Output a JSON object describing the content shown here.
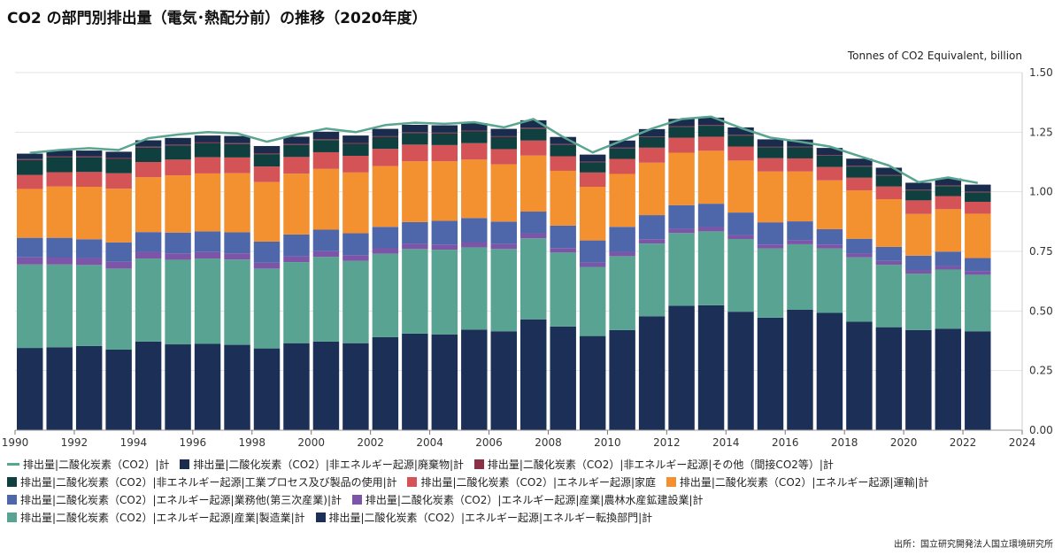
{
  "title": "CO2 の部門別排出量（電気･熱配分前）の推移（2020年度）",
  "unit_label": "Tonnes of CO2 Equivalent, billion",
  "source": "出所：国立研究開発法人国立環境研究所",
  "colors": {
    "total": "#5aa590",
    "energy_conversion": "#1c2f57",
    "manufacturing": "#58a392",
    "agri_construction": "#7d55a8",
    "commercial": "#4e67ab",
    "transport": "#f39030",
    "household": "#d45356",
    "industrial_process": "#0f3f3e",
    "other_indirect": "#8a3145",
    "waste": "#1a2c4e"
  },
  "legend": [
    {
      "key": "total",
      "label": "排出量|二酸化炭素（CO2）|計",
      "kind": "line"
    },
    {
      "key": "waste",
      "label": "排出量|二酸化炭素（CO2）|非エネルギー起源|廃棄物|計",
      "kind": "box"
    },
    {
      "key": "other_indirect",
      "label": "排出量|二酸化炭素（CO2）|非エネルギー起源|その他（間接CO2等）|計",
      "kind": "box"
    },
    {
      "key": "industrial_process",
      "label": "排出量|二酸化炭素（CO2）|非エネルギー起源|工業プロセス及び製品の使用|計",
      "kind": "box"
    },
    {
      "key": "household",
      "label": "排出量|二酸化炭素（CO2）|エネルギー起源|家庭",
      "kind": "box"
    },
    {
      "key": "transport",
      "label": "排出量|二酸化炭素（CO2）|エネルギー起源|運輸|計",
      "kind": "box"
    },
    {
      "key": "commercial",
      "label": "排出量|二酸化炭素（CO2）|エネルギー起源|業務他(第三次産業)|計",
      "kind": "box"
    },
    {
      "key": "agri_construction",
      "label": "排出量|二酸化炭素（CO2）|エネルギー起源|産業|農林水産鉱建設業|計",
      "kind": "box"
    },
    {
      "key": "manufacturing",
      "label": "排出量|二酸化炭素（CO2）|エネルギー起源|産業|製造業|計",
      "kind": "box"
    },
    {
      "key": "energy_conversion",
      "label": "排出量|二酸化炭素（CO2）|エネルギー起源|エネルギー転換部門|計",
      "kind": "box"
    }
  ],
  "chart_data": {
    "type": "bar",
    "stacked": true,
    "title": "CO2 の部門別排出量（電気･熱配分前）の推移（2020年度）",
    "ylabel": "Tonnes of CO2 Equivalent, billion",
    "ylim": [
      0,
      1.5
    ],
    "yticks": [
      "0.00",
      "0.25",
      "0.50",
      "0.75",
      "1.00",
      "1.25",
      "1.50"
    ],
    "xlim": [
      1990,
      2024
    ],
    "xticks": [
      "1990",
      "1992",
      "1994",
      "1996",
      "1998",
      "2000",
      "2002",
      "2004",
      "2006",
      "2008",
      "2010",
      "2012",
      "2014",
      "2016",
      "2018",
      "2020",
      "2022",
      "2024"
    ],
    "categories": [
      1990,
      1991,
      1992,
      1993,
      1994,
      1995,
      1996,
      1997,
      1998,
      1999,
      2000,
      2001,
      2002,
      2003,
      2004,
      2005,
      2006,
      2007,
      2008,
      2009,
      2010,
      2011,
      2012,
      2013,
      2014,
      2015,
      2016,
      2017,
      2018,
      2019,
      2020,
      2021,
      2022
    ],
    "series": [
      {
        "key": "energy_conversion",
        "name": "排出量|二酸化炭素（CO2）|エネルギー起源|エネルギー転換部門|計",
        "values": [
          0.345,
          0.348,
          0.353,
          0.338,
          0.372,
          0.36,
          0.362,
          0.358,
          0.343,
          0.365,
          0.372,
          0.365,
          0.39,
          0.405,
          0.402,
          0.422,
          0.415,
          0.465,
          0.435,
          0.395,
          0.42,
          0.478,
          0.522,
          0.524,
          0.497,
          0.472,
          0.505,
          0.492,
          0.455,
          0.432,
          0.42,
          0.426,
          0.415
        ]
      },
      {
        "key": "manufacturing",
        "name": "排出量|二酸化炭素（CO2）|エネルギー起源|産業|製造業|計",
        "values": [
          0.35,
          0.347,
          0.34,
          0.34,
          0.348,
          0.355,
          0.358,
          0.358,
          0.335,
          0.34,
          0.355,
          0.345,
          0.35,
          0.355,
          0.355,
          0.345,
          0.345,
          0.34,
          0.31,
          0.29,
          0.31,
          0.305,
          0.305,
          0.31,
          0.305,
          0.29,
          0.275,
          0.27,
          0.27,
          0.262,
          0.237,
          0.248,
          0.237
        ]
      },
      {
        "key": "agri_construction",
        "name": "排出量|二酸化炭素（CO2）|エネルギー起源|産業|農林水産鉱建設業|計",
        "values": [
          0.03,
          0.029,
          0.029,
          0.028,
          0.028,
          0.027,
          0.027,
          0.026,
          0.025,
          0.025,
          0.024,
          0.024,
          0.023,
          0.023,
          0.022,
          0.022,
          0.021,
          0.021,
          0.019,
          0.018,
          0.018,
          0.018,
          0.018,
          0.018,
          0.017,
          0.017,
          0.017,
          0.017,
          0.016,
          0.016,
          0.015,
          0.015,
          0.015
        ]
      },
      {
        "key": "commercial",
        "name": "排出量|二酸化炭素（CO2）|エネルギー起源|業務他(第三次産業)|計",
        "values": [
          0.082,
          0.083,
          0.079,
          0.082,
          0.083,
          0.087,
          0.087,
          0.088,
          0.088,
          0.091,
          0.09,
          0.092,
          0.09,
          0.09,
          0.099,
          0.101,
          0.094,
          0.091,
          0.094,
          0.093,
          0.105,
          0.101,
          0.099,
          0.098,
          0.094,
          0.093,
          0.079,
          0.064,
          0.062,
          0.059,
          0.06,
          0.06,
          0.055
        ]
      },
      {
        "key": "transport",
        "name": "排出量|二酸化炭素（CO2）|エネルギー起源|運輸|計",
        "values": [
          0.205,
          0.215,
          0.22,
          0.225,
          0.23,
          0.24,
          0.243,
          0.248,
          0.25,
          0.255,
          0.255,
          0.255,
          0.255,
          0.255,
          0.25,
          0.245,
          0.24,
          0.235,
          0.23,
          0.225,
          0.222,
          0.22,
          0.22,
          0.222,
          0.218,
          0.213,
          0.209,
          0.205,
          0.203,
          0.2,
          0.175,
          0.178,
          0.186
        ]
      },
      {
        "key": "household",
        "name": "排出量|二酸化炭素（CO2）|エネルギー起源|家庭",
        "values": [
          0.059,
          0.06,
          0.062,
          0.065,
          0.064,
          0.066,
          0.068,
          0.066,
          0.065,
          0.07,
          0.07,
          0.07,
          0.072,
          0.07,
          0.068,
          0.069,
          0.064,
          0.063,
          0.061,
          0.06,
          0.063,
          0.063,
          0.063,
          0.059,
          0.059,
          0.056,
          0.055,
          0.056,
          0.053,
          0.053,
          0.057,
          0.055,
          0.05
        ]
      },
      {
        "key": "industrial_process",
        "name": "排出量|二酸化炭素（CO2）|非エネルギー起源|工業プロセス及び製品の使用|計",
        "values": [
          0.062,
          0.063,
          0.061,
          0.06,
          0.06,
          0.059,
          0.058,
          0.056,
          0.052,
          0.05,
          0.051,
          0.05,
          0.049,
          0.048,
          0.048,
          0.049,
          0.05,
          0.05,
          0.048,
          0.042,
          0.044,
          0.044,
          0.045,
          0.046,
          0.046,
          0.046,
          0.046,
          0.047,
          0.047,
          0.046,
          0.042,
          0.042,
          0.04
        ]
      },
      {
        "key": "other_indirect",
        "name": "排出量|二酸化炭素（CO2）|非エネルギー起源|その他（間接CO2等）|計",
        "values": [
          0.004,
          0.004,
          0.004,
          0.004,
          0.004,
          0.004,
          0.004,
          0.004,
          0.004,
          0.004,
          0.004,
          0.004,
          0.004,
          0.004,
          0.004,
          0.004,
          0.004,
          0.004,
          0.003,
          0.003,
          0.003,
          0.003,
          0.003,
          0.003,
          0.003,
          0.003,
          0.003,
          0.003,
          0.003,
          0.003,
          0.003,
          0.003,
          0.003
        ]
      },
      {
        "key": "waste",
        "name": "排出量|二酸化炭素（CO2）|非エネルギー起源|廃棄物|計",
        "values": [
          0.023,
          0.024,
          0.025,
          0.026,
          0.027,
          0.028,
          0.029,
          0.03,
          0.03,
          0.031,
          0.031,
          0.031,
          0.031,
          0.031,
          0.031,
          0.031,
          0.031,
          0.031,
          0.03,
          0.03,
          0.03,
          0.031,
          0.031,
          0.031,
          0.031,
          0.03,
          0.03,
          0.03,
          0.03,
          0.03,
          0.029,
          0.029,
          0.029
        ]
      }
    ],
    "line": {
      "key": "total",
      "name": "排出量|二酸化炭素（CO2）|計",
      "values": [
        1.163,
        1.175,
        1.183,
        1.175,
        1.225,
        1.24,
        1.25,
        1.245,
        1.21,
        1.24,
        1.265,
        1.25,
        1.28,
        1.29,
        1.285,
        1.292,
        1.27,
        1.305,
        1.23,
        1.165,
        1.215,
        1.265,
        1.305,
        1.315,
        1.268,
        1.227,
        1.21,
        1.19,
        1.15,
        1.11,
        1.04,
        1.06,
        1.037
      ]
    }
  }
}
